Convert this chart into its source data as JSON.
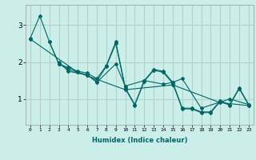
{
  "xlabel": "Humidex (Indice chaleur)",
  "ylabel": "",
  "bg_color": "#cceee8",
  "grid_color": "#b0d4cc",
  "line_color": "#006666",
  "xlim": [
    -0.5,
    23.5
  ],
  "ylim": [
    0.3,
    3.55
  ],
  "yticks": [
    1,
    2,
    3
  ],
  "xticks": [
    0,
    1,
    2,
    3,
    4,
    5,
    6,
    7,
    8,
    9,
    10,
    11,
    12,
    13,
    14,
    15,
    16,
    17,
    18,
    19,
    20,
    21,
    22,
    23
  ],
  "lines": [
    {
      "x": [
        0,
        1,
        2,
        3,
        4,
        5,
        6,
        7,
        8,
        9,
        10,
        11,
        12,
        13,
        14,
        15,
        16,
        17,
        18,
        19,
        20,
        21,
        22,
        23
      ],
      "y": [
        2.65,
        3.25,
        2.55,
        1.95,
        1.85,
        1.75,
        1.7,
        1.55,
        1.9,
        2.55,
        1.3,
        0.85,
        1.5,
        1.8,
        1.75,
        1.45,
        0.75,
        0.75,
        0.65,
        0.65,
        0.95,
        0.85,
        1.3,
        0.85
      ]
    },
    {
      "x": [
        3,
        4,
        6,
        7,
        9,
        10,
        12,
        14,
        15,
        16,
        18,
        21,
        23
      ],
      "y": [
        2.0,
        1.75,
        1.65,
        1.45,
        1.95,
        1.35,
        1.5,
        1.4,
        1.45,
        1.55,
        0.75,
        1.0,
        0.85
      ]
    },
    {
      "x": [
        2,
        3,
        4,
        5,
        6,
        7,
        8,
        9,
        10,
        11,
        12,
        13,
        14,
        15,
        16,
        17,
        18,
        19,
        20,
        21,
        22,
        23
      ],
      "y": [
        2.55,
        1.95,
        1.8,
        1.72,
        1.65,
        1.48,
        1.88,
        2.5,
        1.28,
        0.83,
        1.48,
        1.78,
        1.72,
        1.42,
        0.73,
        0.73,
        0.63,
        0.63,
        0.93,
        0.83,
        1.28,
        0.83
      ]
    },
    {
      "x": [
        0,
        5,
        10,
        15,
        20,
        23
      ],
      "y": [
        2.62,
        1.72,
        1.25,
        1.38,
        0.9,
        0.82
      ]
    }
  ]
}
